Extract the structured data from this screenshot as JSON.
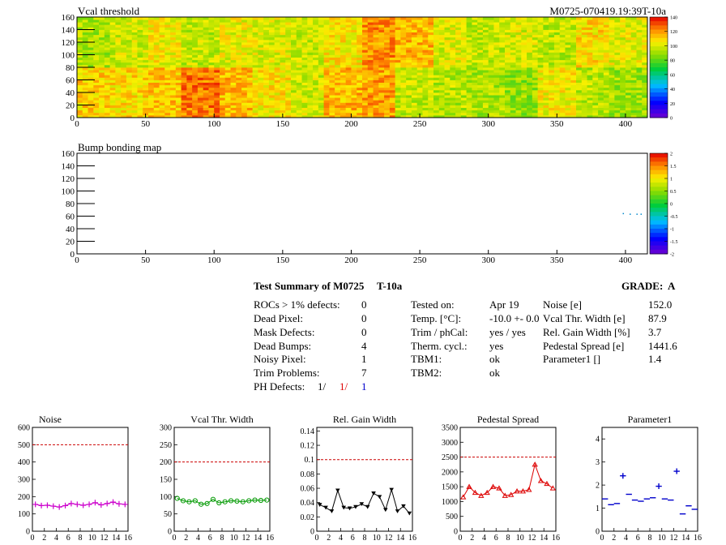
{
  "header": {
    "title": "Vcal threshold",
    "module_id": "M0725-070419.19:39T-10a"
  },
  "chart_data": [
    {
      "type": "heatmap",
      "name": "vcal-threshold-map",
      "title": "Vcal threshold",
      "xlim": [
        0,
        416
      ],
      "ylim": [
        0,
        160
      ],
      "xticks": [
        0,
        50,
        100,
        150,
        200,
        250,
        300,
        350,
        400
      ],
      "yticks": [
        0,
        20,
        40,
        60,
        80,
        100,
        120,
        140,
        160
      ],
      "zlim": [
        0,
        140
      ],
      "zticks": [
        0,
        20,
        40,
        60,
        80,
        100,
        120,
        140
      ],
      "roc_mean_levels_top": [
        92,
        98,
        104,
        96,
        102,
        100,
        97,
        106,
        120,
        114,
        100,
        96,
        99,
        95,
        108,
        101
      ],
      "roc_mean_levels_bottom": [
        110,
        108,
        112,
        124,
        114,
        106,
        98,
        114,
        118,
        96,
        94,
        92,
        88,
        104,
        94,
        90
      ]
    },
    {
      "type": "heatmap",
      "name": "bump-bonding-map",
      "title": "Bump bonding map",
      "xlim": [
        0,
        416
      ],
      "ylim": [
        0,
        160
      ],
      "xticks": [
        0,
        50,
        100,
        150,
        200,
        250,
        300,
        350,
        400
      ],
      "yticks": [
        0,
        20,
        40,
        60,
        80,
        100,
        120,
        140,
        160
      ],
      "zlim": [
        -2,
        2
      ],
      "zticks": [
        -2,
        -1.5,
        -1,
        -0.5,
        0,
        0.5,
        1,
        1.5,
        2
      ],
      "defects": [
        [
          398,
          65
        ],
        [
          403,
          64
        ],
        [
          408,
          64
        ],
        [
          411,
          64
        ]
      ]
    },
    {
      "type": "line",
      "title": "Noise",
      "x": [
        0,
        1,
        2,
        3,
        4,
        5,
        6,
        7,
        8,
        9,
        10,
        11,
        12,
        13,
        14,
        15
      ],
      "values": [
        155,
        148,
        150,
        145,
        140,
        148,
        160,
        155,
        150,
        155,
        165,
        152,
        160,
        168,
        158,
        155
      ],
      "marker": "plus",
      "color": "#cc00cc",
      "threshold": 500,
      "xlim": [
        0,
        16
      ],
      "ylim": [
        0,
        600
      ],
      "xticks": [
        0,
        2,
        4,
        6,
        8,
        10,
        12,
        14,
        16
      ],
      "yticks": [
        0,
        100,
        200,
        300,
        400,
        500,
        600
      ]
    },
    {
      "type": "line",
      "title": "Vcal Thr. Width",
      "x": [
        0,
        1,
        2,
        3,
        4,
        5,
        6,
        7,
        8,
        9,
        10,
        11,
        12,
        13,
        14,
        15
      ],
      "values": [
        95,
        88,
        85,
        88,
        78,
        80,
        92,
        82,
        85,
        88,
        87,
        85,
        88,
        90,
        89,
        90
      ],
      "marker": "circle",
      "color": "#009900",
      "threshold": 200,
      "xlim": [
        0,
        16
      ],
      "ylim": [
        0,
        300
      ],
      "xticks": [
        0,
        2,
        4,
        6,
        8,
        10,
        12,
        14,
        16
      ],
      "yticks": [
        0,
        50,
        100,
        150,
        200,
        250,
        300
      ]
    },
    {
      "type": "line",
      "title": "Rel. Gain Width",
      "x": [
        0,
        1,
        2,
        3,
        4,
        5,
        6,
        7,
        8,
        9,
        10,
        11,
        12,
        13,
        14,
        15
      ],
      "values": [
        0.037,
        0.033,
        0.028,
        0.057,
        0.033,
        0.032,
        0.034,
        0.038,
        0.034,
        0.053,
        0.048,
        0.03,
        0.058,
        0.028,
        0.035,
        0.025
      ],
      "marker": "triangle-down",
      "color": "#000000",
      "threshold": 0.1,
      "xlim": [
        0,
        16
      ],
      "ylim": [
        0,
        0.145
      ],
      "xticks": [
        0,
        2,
        4,
        6,
        8,
        10,
        12,
        14,
        16
      ],
      "yticks": [
        0,
        0.02,
        0.04,
        0.06,
        0.08,
        0.1,
        0.12,
        0.14
      ],
      "ytick_labels": [
        "0",
        "0.02",
        "0.04",
        "0.06",
        "0.08",
        "0.1",
        "0.12",
        "0.14"
      ]
    },
    {
      "type": "line",
      "title": "Pedestal Spread",
      "x": [
        0,
        1,
        2,
        3,
        4,
        5,
        6,
        7,
        8,
        9,
        10,
        11,
        12,
        13,
        14,
        15
      ],
      "values": [
        1150,
        1500,
        1300,
        1200,
        1300,
        1500,
        1450,
        1200,
        1230,
        1350,
        1350,
        1400,
        2250,
        1700,
        1600,
        1450
      ],
      "marker": "triangle-up",
      "color": "#dd0000",
      "threshold": 2500,
      "xlim": [
        0,
        16
      ],
      "ylim": [
        0,
        3500
      ],
      "xticks": [
        0,
        2,
        4,
        6,
        8,
        10,
        12,
        14,
        16
      ],
      "yticks": [
        0,
        500,
        1000,
        1500,
        2000,
        2500,
        3000,
        3500
      ]
    },
    {
      "type": "scatter",
      "title": "Parameter1",
      "x": [
        0,
        1,
        2,
        3,
        4,
        5,
        6,
        7,
        8,
        9,
        10,
        11,
        12,
        13,
        14,
        15
      ],
      "values": [
        1.4,
        1.15,
        1.2,
        2.4,
        1.6,
        1.35,
        1.3,
        1.4,
        1.45,
        1.95,
        1.4,
        1.35,
        2.6,
        0.75,
        1.1,
        0.95
      ],
      "marker": "hbar",
      "color": "#0000cc",
      "xlim": [
        0,
        16
      ],
      "ylim": [
        0,
        4.5
      ],
      "xticks": [
        0,
        2,
        4,
        6,
        8,
        10,
        12,
        14,
        16
      ],
      "yticks": [
        0,
        1,
        2,
        3,
        4
      ]
    }
  ],
  "summary": {
    "title": "Test Summary of M0725",
    "temp": "T-10a",
    "grade_label": "GRADE:",
    "grade": "A",
    "defects": [
      {
        "label": "ROCs > 1% defects:",
        "value": "0"
      },
      {
        "label": "Dead Pixel:",
        "value": "0"
      },
      {
        "label": "Mask Defects:",
        "value": "0"
      },
      {
        "label": "Dead Bumps:",
        "value": "4"
      },
      {
        "label": "Noisy Pixel:",
        "value": "1"
      },
      {
        "label": "Trim Problems:",
        "value": "7"
      }
    ],
    "ph_defects": {
      "label": "PH Defects:",
      "v1": "1/",
      "v2": "1/",
      "v3": "1",
      "c1": "#000000",
      "c2": "#dd0000",
      "c3": "#0000cc"
    },
    "conditions": [
      {
        "label": "Tested on:",
        "value": "Apr 19"
      },
      {
        "label": "Temp. [°C]:",
        "value": "-10.0 +- 0.0"
      },
      {
        "label": "Trim / phCal:",
        "value": "yes / yes"
      },
      {
        "label": "Therm. cycl.:",
        "value": "yes"
      },
      {
        "label": "TBM1:",
        "value": "ok"
      },
      {
        "label": "TBM2:",
        "value": "ok"
      }
    ],
    "stats": [
      {
        "label": "Noise [e]",
        "value": "152.0"
      },
      {
        "label": "Vcal Thr. Width [e]",
        "value": "87.9"
      },
      {
        "label": "Rel. Gain Width [%]",
        "value": "3.7"
      },
      {
        "label": "Pedestal Spread [e]",
        "value": "1441.6"
      },
      {
        "label": "Parameter1 []",
        "value": "1.4"
      }
    ]
  }
}
